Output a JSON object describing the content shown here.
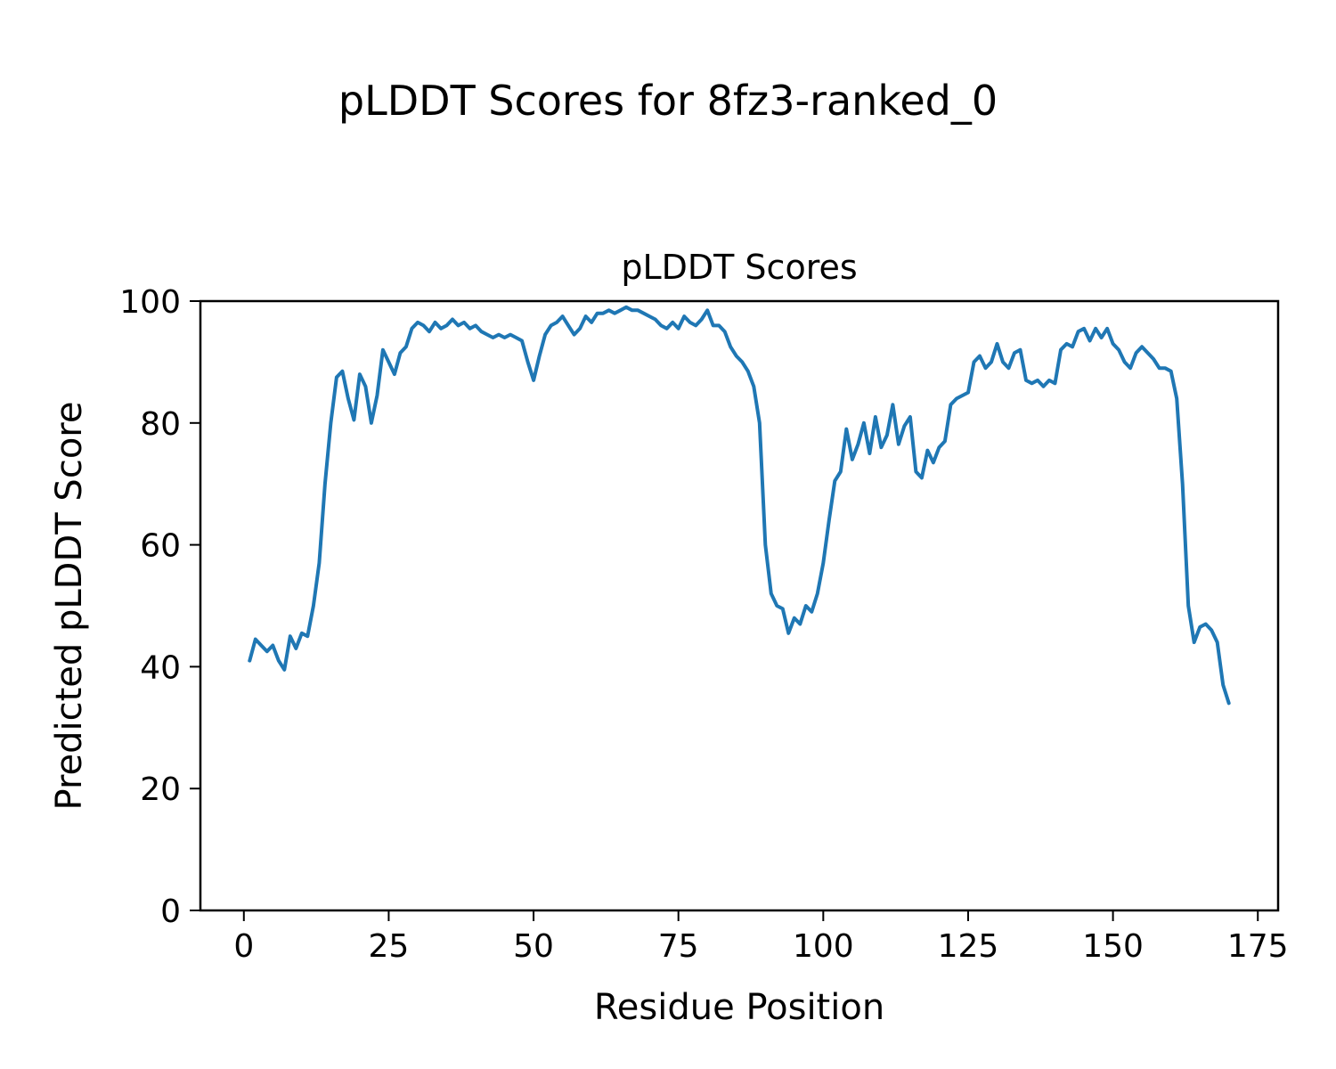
{
  "figure": {
    "suptitle": "pLDDT Scores for 8fz3-ranked_0"
  },
  "chart_data": {
    "type": "line",
    "suptitle": "pLDDT Scores for 8fz3-ranked_0",
    "title": "pLDDT Scores",
    "xlabel": "Residue Position",
    "ylabel": "Predicted pLDDT Score",
    "x_start": 1,
    "x_step": 1,
    "x_end": 170,
    "values": [
      41,
      44.5,
      43.5,
      42.5,
      43.5,
      41,
      39.5,
      45,
      43,
      45.5,
      45,
      50,
      57,
      70,
      80,
      87.5,
      88.5,
      84,
      80.5,
      88,
      86,
      80,
      84.5,
      92,
      90,
      88,
      91.5,
      92.5,
      95.5,
      96.5,
      96,
      95,
      96.5,
      95.5,
      96,
      97,
      96,
      96.5,
      95.5,
      96,
      95,
      94.5,
      94,
      94.5,
      94,
      94.5,
      94,
      93.5,
      90,
      87,
      91,
      94.5,
      96,
      96.5,
      97.5,
      96,
      94.5,
      95.5,
      97.5,
      96.5,
      98,
      98,
      98.5,
      98,
      98.5,
      99,
      98.5,
      98.5,
      98,
      97.5,
      97,
      96,
      95.5,
      96.5,
      95.5,
      97.5,
      96.5,
      96,
      97,
      98.5,
      96,
      96,
      95,
      92.5,
      91,
      90,
      88.5,
      86,
      80,
      60,
      52,
      50,
      49.5,
      45.5,
      48,
      47,
      50,
      49,
      52,
      57,
      64,
      70.5,
      72,
      79,
      74,
      76.5,
      80,
      75,
      81,
      76,
      78,
      83,
      76.5,
      79.5,
      81,
      72,
      71,
      75.5,
      73.5,
      76,
      77,
      83,
      84,
      84.5,
      85,
      90,
      91,
      89,
      90,
      93,
      90,
      89,
      91.5,
      92,
      87,
      86.5,
      87,
      86,
      87,
      86.5,
      92,
      93,
      92.5,
      95,
      95.5,
      93.5,
      95.5,
      94,
      95.5,
      93,
      92,
      90,
      89,
      91.5,
      92.5,
      91.5,
      90.5,
      89,
      89,
      88.5,
      84,
      70,
      50,
      44,
      46.5,
      47,
      46,
      44,
      37,
      34
    ],
    "xlim": [
      -7.5,
      178.5
    ],
    "ylim": [
      0,
      100
    ],
    "xticks": [
      0,
      25,
      50,
      75,
      100,
      125,
      150,
      175
    ],
    "yticks": [
      0,
      20,
      40,
      60,
      80,
      100
    ],
    "line_color": "#1f77b4",
    "line_width": 4,
    "axis_color": "#000000",
    "background_color": "#ffffff",
    "grid": false,
    "legend": "none"
  }
}
